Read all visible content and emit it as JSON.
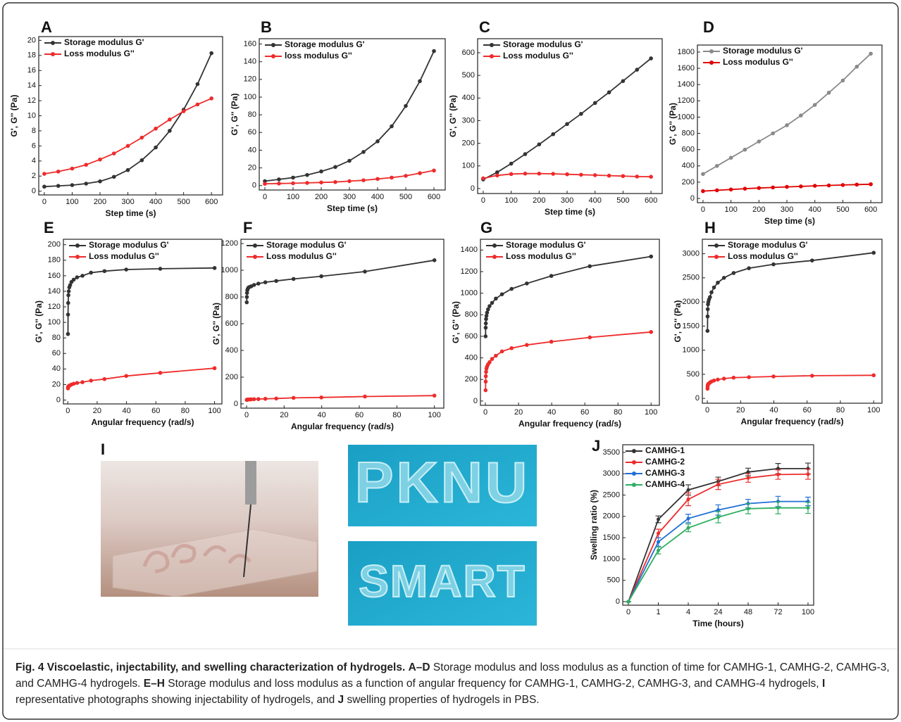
{
  "chart_data": [
    {
      "type": "line",
      "panel": "A",
      "xlabel": "Step time (s)",
      "ylabel": "G', G'' (Pa)",
      "legend": "upper left",
      "x": [
        0,
        50,
        100,
        150,
        200,
        250,
        300,
        350,
        400,
        450,
        500,
        550,
        600
      ],
      "xlim": [
        -20,
        640
      ],
      "xticks": [
        0,
        100,
        200,
        300,
        400,
        500,
        600
      ],
      "ylim": [
        -0.5,
        20.5
      ],
      "yticks": [
        0,
        2,
        4,
        6,
        8,
        10,
        12,
        14,
        16,
        18,
        20
      ],
      "series": [
        {
          "name": "Storage modulus G'",
          "color": "#333333",
          "values": [
            0.6,
            0.7,
            0.8,
            1.0,
            1.3,
            1.9,
            2.8,
            4.1,
            5.8,
            8.0,
            10.8,
            14.2,
            18.3
          ]
        },
        {
          "name": "Loss modulus G''",
          "color": "#ee2b2b",
          "values": [
            2.3,
            2.6,
            3.0,
            3.5,
            4.2,
            5.0,
            6.0,
            7.1,
            8.3,
            9.5,
            10.6,
            11.5,
            12.3
          ]
        }
      ]
    },
    {
      "type": "line",
      "panel": "B",
      "xlabel": "Step time (s)",
      "ylabel": "G', G'' (Pa)",
      "legend": "upper left",
      "x": [
        0,
        50,
        100,
        150,
        200,
        250,
        300,
        350,
        400,
        450,
        500,
        550,
        600
      ],
      "xlim": [
        -20,
        640
      ],
      "xticks": [
        0,
        100,
        200,
        300,
        400,
        500,
        600
      ],
      "ylim": [
        -5,
        166
      ],
      "yticks": [
        0,
        20,
        40,
        60,
        80,
        100,
        120,
        140,
        160
      ],
      "series": [
        {
          "name": "Storage modulus G'",
          "color": "#333333",
          "values": [
            5,
            7,
            9,
            12,
            16,
            21,
            28,
            38,
            50,
            67,
            90,
            118,
            152
          ]
        },
        {
          "name": "loss modulus G''",
          "color": "#ee2b2b",
          "values": [
            2,
            2.3,
            2.6,
            3,
            3.5,
            4,
            5,
            6,
            7.5,
            9,
            11,
            14,
            17
          ]
        }
      ]
    },
    {
      "type": "line",
      "panel": "C",
      "xlabel": "Step time (s)",
      "ylabel": "G', G'' (Pa)",
      "legend": "upper left",
      "x": [
        0,
        50,
        100,
        150,
        200,
        250,
        300,
        350,
        400,
        450,
        500,
        550,
        600
      ],
      "xlim": [
        -20,
        640
      ],
      "xticks": [
        0,
        100,
        200,
        300,
        400,
        500,
        600
      ],
      "ylim": [
        -22,
        662
      ],
      "yticks": [
        0,
        100,
        200,
        300,
        400,
        500,
        600
      ],
      "series": [
        {
          "name": "Storage modulus G'",
          "color": "#333333",
          "values": [
            40,
            72,
            110,
            152,
            195,
            240,
            285,
            330,
            378,
            425,
            475,
            525,
            575
          ]
        },
        {
          "name": "Loss modulus G''",
          "color": "#ee2b2b",
          "values": [
            45,
            58,
            64,
            66,
            66,
            65,
            63,
            61,
            59,
            57,
            55,
            53,
            52
          ]
        }
      ]
    },
    {
      "type": "line",
      "panel": "D",
      "xlabel": "Step time (s)",
      "ylabel": "G', G'' (Pa)",
      "legend": "upper left",
      "x": [
        0,
        50,
        100,
        150,
        200,
        250,
        300,
        350,
        400,
        450,
        500,
        550,
        600
      ],
      "xlim": [
        -20,
        640
      ],
      "xticks": [
        0,
        100,
        200,
        300,
        400,
        500,
        600
      ],
      "ylim": [
        -52,
        1886
      ],
      "yticks": [
        0,
        200,
        400,
        600,
        800,
        1000,
        1200,
        1400,
        1600,
        1800
      ],
      "series": [
        {
          "name": "Storage modulus G'",
          "color": "#8a8a8a",
          "values": [
            300,
            400,
            500,
            600,
            700,
            800,
            900,
            1020,
            1150,
            1300,
            1450,
            1620,
            1780
          ]
        },
        {
          "name": "Loss modulus G''",
          "color": "#e00000",
          "values": [
            90,
            100,
            110,
            120,
            128,
            135,
            142,
            148,
            155,
            160,
            165,
            170,
            175
          ]
        }
      ]
    },
    {
      "type": "line",
      "panel": "E",
      "xlabel": "Angular frequency (rad/s)",
      "ylabel": "G', G'' (Pa)",
      "legend": "upper left",
      "x": [
        0.1,
        0.16,
        0.25,
        0.4,
        0.63,
        1,
        1.6,
        2.5,
        4,
        6.3,
        10,
        15.8,
        25,
        39.8,
        63,
        100
      ],
      "xlim": [
        -3,
        105
      ],
      "xticks": [
        0,
        20,
        40,
        60,
        80,
        100
      ],
      "ylim": [
        -5,
        207
      ],
      "yticks": [
        0,
        20,
        40,
        60,
        80,
        100,
        120,
        140,
        160,
        180,
        200
      ],
      "series": [
        {
          "name": "Storage modulus G'",
          "color": "#333333",
          "values": [
            85,
            110,
            125,
            135,
            140,
            145,
            148,
            152,
            155,
            158,
            160,
            164,
            166,
            168,
            169,
            170
          ]
        },
        {
          "name": "Loss modulus G''",
          "color": "#ee2b2b",
          "values": [
            15,
            16,
            17,
            17.5,
            18,
            18.5,
            19,
            20,
            21,
            22,
            23,
            25,
            27,
            31,
            35,
            41
          ]
        }
      ]
    },
    {
      "type": "line",
      "panel": "F",
      "xlabel": "Angular frequency (rad/s)",
      "ylabel": "G', G'' (Pa)",
      "legend": "upper left",
      "x": [
        0.1,
        0.16,
        0.25,
        0.4,
        0.63,
        1,
        1.6,
        2.5,
        4,
        6.3,
        10,
        15.8,
        25,
        39.8,
        63,
        100
      ],
      "xlim": [
        -3,
        105
      ],
      "xticks": [
        0,
        20,
        40,
        60,
        80,
        100
      ],
      "ylim": [
        -32,
        1232
      ],
      "yticks": [
        0,
        200,
        400,
        600,
        800,
        1000,
        1200
      ],
      "series": [
        {
          "name": "Storage modulus G'",
          "color": "#333333",
          "values": [
            760,
            800,
            830,
            850,
            860,
            870,
            875,
            880,
            890,
            900,
            910,
            920,
            935,
            955,
            990,
            1075
          ]
        },
        {
          "name": "Loss modulus G''",
          "color": "#ee2b2b",
          "values": [
            30,
            30,
            31,
            32,
            32,
            33,
            33,
            34,
            35,
            36,
            38,
            40,
            45,
            48,
            55,
            62
          ]
        }
      ]
    },
    {
      "type": "line",
      "panel": "G",
      "xlabel": "Angular frequency (rad/s)",
      "ylabel": "G', G'' (Pa)",
      "legend": "upper left",
      "x": [
        0.1,
        0.16,
        0.25,
        0.4,
        0.63,
        1,
        1.6,
        2.5,
        4,
        6.3,
        10,
        15.8,
        25,
        39.8,
        63,
        100
      ],
      "xlim": [
        -3,
        105
      ],
      "xticks": [
        0,
        20,
        40,
        60,
        80,
        100
      ],
      "ylim": [
        -40,
        1500
      ],
      "yticks": [
        0,
        200,
        400,
        600,
        800,
        1000,
        1200,
        1400
      ],
      "series": [
        {
          "name": "Storage modulus G'",
          "color": "#333333",
          "values": [
            600,
            680,
            720,
            760,
            790,
            820,
            850,
            880,
            910,
            950,
            990,
            1040,
            1090,
            1160,
            1250,
            1340
          ]
        },
        {
          "name": "Loss modulus G''",
          "color": "#ee2b2b",
          "values": [
            100,
            180,
            230,
            270,
            300,
            320,
            340,
            360,
            390,
            420,
            460,
            490,
            520,
            550,
            590,
            640
          ]
        }
      ]
    },
    {
      "type": "line",
      "panel": "H",
      "xlabel": "Angular frequency (rad/s)",
      "ylabel": "G', G'' (Pa)",
      "legend": "upper left",
      "x": [
        0.1,
        0.16,
        0.25,
        0.4,
        0.63,
        1,
        1.6,
        2.5,
        4,
        6.3,
        10,
        15.8,
        25,
        39.8,
        63,
        100
      ],
      "xlim": [
        -3,
        105
      ],
      "xticks": [
        0,
        20,
        40,
        60,
        80,
        100
      ],
      "ylim": [
        -100,
        3300
      ],
      "yticks": [
        0,
        500,
        1000,
        1500,
        2000,
        2500,
        3000
      ],
      "series": [
        {
          "name": "Storage modulus G'",
          "color": "#333333",
          "values": [
            1400,
            1700,
            1850,
            1950,
            2000,
            2050,
            2100,
            2200,
            2300,
            2400,
            2500,
            2600,
            2700,
            2780,
            2860,
            3020
          ]
        },
        {
          "name": "Loss modulus G''",
          "color": "#ee2b2b",
          "values": [
            200,
            240,
            270,
            290,
            300,
            310,
            330,
            350,
            370,
            390,
            410,
            430,
            440,
            455,
            470,
            480
          ]
        }
      ]
    },
    {
      "type": "line",
      "panel": "J",
      "xlabel": "Time (hours)",
      "ylabel": "Swelling ratio (%)",
      "legend": "upper left",
      "categories": [
        "0",
        "1",
        "4",
        "24",
        "48",
        "72",
        "100"
      ],
      "ylim": [
        -83,
        3680
      ],
      "yticks": [
        0,
        500,
        1000,
        1500,
        2000,
        2500,
        3000,
        3500
      ],
      "series": [
        {
          "name": "CAMHG-1",
          "color": "#333333",
          "values": [
            0,
            1930,
            2620,
            2820,
            3040,
            3120,
            3120
          ],
          "errors": [
            0,
            80,
            120,
            100,
            90,
            120,
            130
          ]
        },
        {
          "name": "CAMHG-2",
          "color": "#ee2b2b",
          "values": [
            0,
            1600,
            2400,
            2750,
            2900,
            2980,
            2990
          ],
          "errors": [
            0,
            100,
            150,
            120,
            100,
            110,
            120
          ]
        },
        {
          "name": "CAMHG-3",
          "color": "#1f6fd6",
          "values": [
            0,
            1400,
            1950,
            2150,
            2300,
            2350,
            2350
          ],
          "errors": [
            0,
            100,
            100,
            120,
            100,
            120,
            100
          ]
        },
        {
          "name": "CAMHG-4",
          "color": "#2cae5f",
          "values": [
            0,
            1200,
            1730,
            1980,
            2180,
            2200,
            2200
          ],
          "errors": [
            0,
            80,
            90,
            130,
            120,
            140,
            130
          ]
        }
      ]
    }
  ],
  "photos": {
    "label": "I",
    "texts": [
      "PKNU",
      "SMART"
    ]
  },
  "caption": [
    {
      "text": "Fig. 4 Viscoelastic, injectability, and swelling characterization of hydrogels.",
      "bold": true
    },
    {
      "text": "A–D",
      "bold": true
    },
    {
      "text": "Storage modulus and loss modulus as a function of time for CAMHG-1, CAMHG-2, CAMHG-3, and CAMHG-4 hydrogels.",
      "bold": false
    },
    {
      "text": "E–H",
      "bold": true
    },
    {
      "text": "Storage modulus and loss modulus as a function of angular frequency for CAMHG-1, CAMHG-2, CAMHG-3, and CAMHG-4 hydrogels,",
      "bold": false
    },
    {
      "text": "I",
      "bold": true
    },
    {
      "text": "representative photographs showing injectability of hydrogels, and",
      "bold": false
    },
    {
      "text": "J",
      "bold": true
    },
    {
      "text": "swelling properties of hydrogels in PBS.",
      "bold": false
    }
  ]
}
